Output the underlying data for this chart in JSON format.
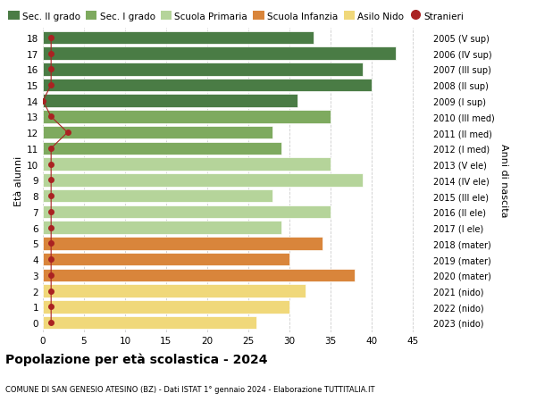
{
  "ages": [
    18,
    17,
    16,
    15,
    14,
    13,
    12,
    11,
    10,
    9,
    8,
    7,
    6,
    5,
    4,
    3,
    2,
    1,
    0
  ],
  "values": [
    33,
    43,
    39,
    40,
    31,
    35,
    28,
    29,
    35,
    39,
    28,
    35,
    29,
    34,
    30,
    38,
    32,
    30,
    26
  ],
  "stranieri": [
    1,
    1,
    1,
    1,
    0,
    1,
    3,
    1,
    1,
    1,
    1,
    1,
    1,
    1,
    1,
    1,
    1,
    1,
    1
  ],
  "right_labels": [
    "2005 (V sup)",
    "2006 (IV sup)",
    "2007 (III sup)",
    "2008 (II sup)",
    "2009 (I sup)",
    "2010 (III med)",
    "2011 (II med)",
    "2012 (I med)",
    "2013 (V ele)",
    "2014 (IV ele)",
    "2015 (III ele)",
    "2016 (II ele)",
    "2017 (I ele)",
    "2018 (mater)",
    "2019 (mater)",
    "2020 (mater)",
    "2021 (nido)",
    "2022 (nido)",
    "2023 (nido)"
  ],
  "bar_colors": [
    "#4a7c45",
    "#4a7c45",
    "#4a7c45",
    "#4a7c45",
    "#4a7c45",
    "#7eaa5f",
    "#7eaa5f",
    "#7eaa5f",
    "#b5d49a",
    "#b5d49a",
    "#b5d49a",
    "#b5d49a",
    "#b5d49a",
    "#d9853b",
    "#d9853b",
    "#d9853b",
    "#f0d87a",
    "#f0d87a",
    "#f0d87a"
  ],
  "legend_items": [
    {
      "label": "Sec. II grado",
      "color": "#4a7c45",
      "type": "patch"
    },
    {
      "label": "Sec. I grado",
      "color": "#7eaa5f",
      "type": "patch"
    },
    {
      "label": "Scuola Primaria",
      "color": "#b5d49a",
      "type": "patch"
    },
    {
      "label": "Scuola Infanzia",
      "color": "#d9853b",
      "type": "patch"
    },
    {
      "label": "Asilo Nido",
      "color": "#f0d87a",
      "type": "patch"
    },
    {
      "label": "Stranieri",
      "color": "#aa2222",
      "type": "dot"
    }
  ],
  "ylabel_left": "Età alunni",
  "ylabel_right": "Anni di nascita",
  "title": "Popolazione per età scolastica - 2024",
  "subtitle": "COMUNE DI SAN GENESIO ATESINO (BZ) - Dati ISTAT 1° gennaio 2024 - Elaborazione TUTTITALIA.IT",
  "xlim": [
    0,
    47
  ],
  "xticks": [
    0,
    5,
    10,
    15,
    20,
    25,
    30,
    35,
    40,
    45
  ],
  "bg_color": "#ffffff",
  "grid_color": "#cccccc",
  "stranieri_color": "#aa2222",
  "bar_height": 0.82
}
